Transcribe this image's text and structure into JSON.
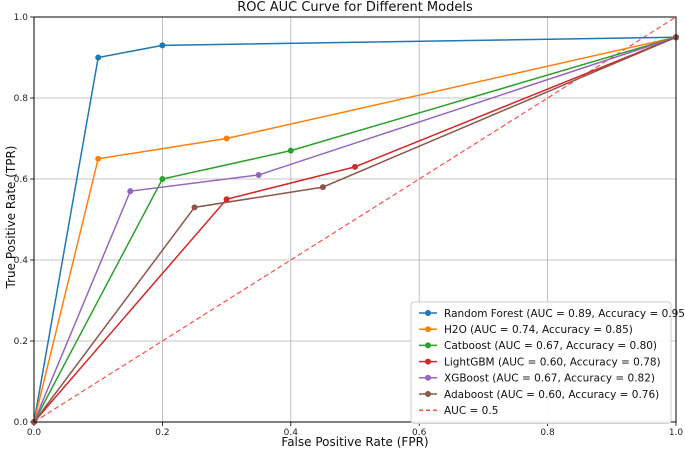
{
  "chart_data": {
    "type": "line",
    "title": "ROC AUC Curve for Different Models",
    "xlabel": "False Positive Rate (FPR)",
    "ylabel": "True Positive Rate (TPR)",
    "xlim": [
      0,
      1
    ],
    "ylim": [
      0,
      1
    ],
    "x_ticks": [
      "0.0",
      "0.2",
      "0.4",
      "0.6",
      "0.8",
      "1.0"
    ],
    "y_ticks": [
      "0.0",
      "0.2",
      "0.4",
      "0.6",
      "0.8",
      "1.0"
    ],
    "grid": true,
    "legend_position": "lower-right",
    "series": [
      {
        "name": "Random Forest (AUC = 0.89, Accuracy = 0.95)",
        "color": "#1f77b4",
        "x": [
          0,
          0.1,
          0.2,
          1.0
        ],
        "y": [
          0,
          0.9,
          0.93,
          0.95
        ]
      },
      {
        "name": "H2O (AUC = 0.74, Accuracy = 0.85)",
        "color": "#ff7f0e",
        "x": [
          0,
          0.1,
          0.3,
          1.0
        ],
        "y": [
          0,
          0.65,
          0.7,
          0.95
        ]
      },
      {
        "name": "Catboost (AUC = 0.67, Accuracy = 0.80)",
        "color": "#2ca02c",
        "x": [
          0,
          0.2,
          0.4,
          1.0
        ],
        "y": [
          0,
          0.6,
          0.67,
          0.95
        ]
      },
      {
        "name": "LightGBM (AUC = 0.60, Accuracy = 0.78)",
        "color": "#d62728",
        "x": [
          0,
          0.3,
          0.5,
          1.0
        ],
        "y": [
          0,
          0.55,
          0.63,
          0.95
        ]
      },
      {
        "name": "XGBoost (AUC = 0.67, Accuracy = 0.82)",
        "color": "#9467bd",
        "x": [
          0,
          0.15,
          0.35,
          1.0
        ],
        "y": [
          0,
          0.57,
          0.61,
          0.95
        ]
      },
      {
        "name": "Adaboost (AUC = 0.60, Accuracy = 0.76)",
        "color": "#8c564b",
        "x": [
          0,
          0.25,
          0.45,
          1.0
        ],
        "y": [
          0,
          0.53,
          0.58,
          0.95
        ]
      }
    ],
    "reference_line": {
      "name": "AUC = 0.5",
      "color": "#ff4d4d",
      "style": "dashed",
      "x": [
        0,
        1
      ],
      "y": [
        0,
        1
      ]
    }
  }
}
